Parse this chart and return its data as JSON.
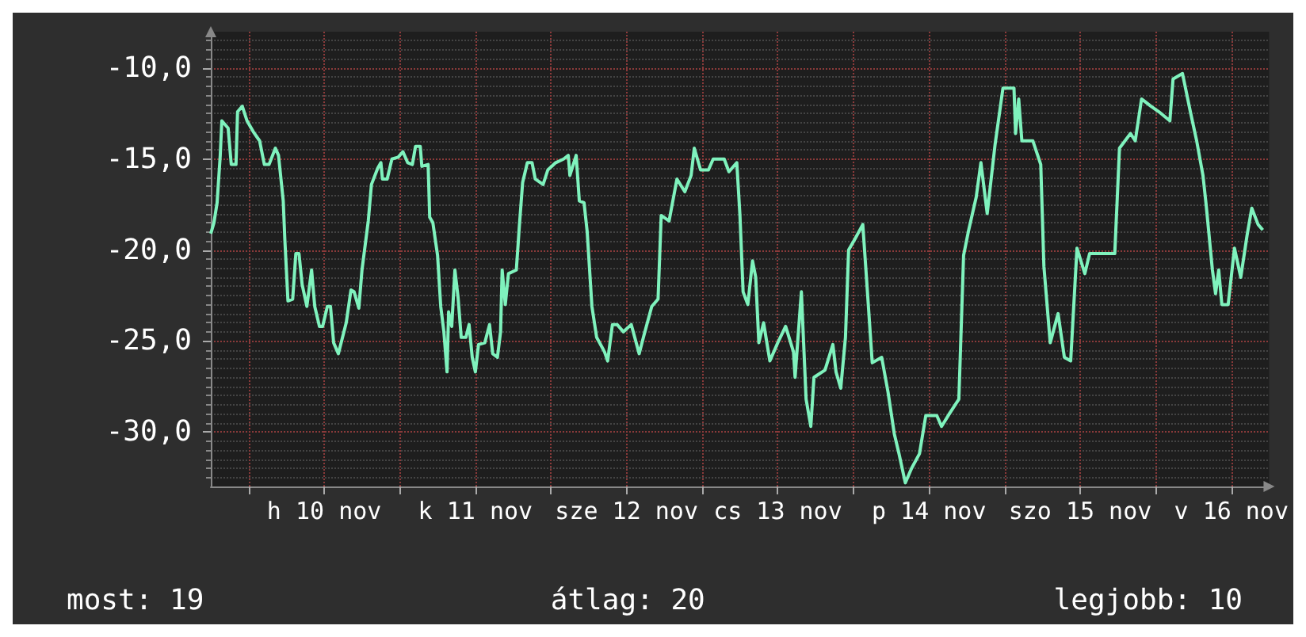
{
  "chart_data": {
    "type": "line",
    "xlim": [
      "--11-09T18:00",
      "--11-16T18:00"
    ],
    "xticks": [
      {
        "value": "--11-10T00:00",
        "label": null
      },
      {
        "value": "--11-10T12:00",
        "label": "h 10 nov"
      },
      {
        "value": "--11-11T00:00",
        "label": null
      },
      {
        "value": "--11-11T12:00",
        "label": "k 11 nov"
      },
      {
        "value": "--11-12T00:00",
        "label": null
      },
      {
        "value": "--11-12T12:00",
        "label": "sze 12 nov"
      },
      {
        "value": "--11-13T00:00",
        "label": null
      },
      {
        "value": "--11-13T12:00",
        "label": "cs 13 nov"
      },
      {
        "value": "--11-14T00:00",
        "label": null
      },
      {
        "value": "--11-14T12:00",
        "label": "p 14 nov"
      },
      {
        "value": "--11-15T00:00",
        "label": null
      },
      {
        "value": "--11-15T12:00",
        "label": "szo 15 nov"
      },
      {
        "value": "--11-16T00:00",
        "label": null
      },
      {
        "value": "--11-16T12:00",
        "label": "v 16 nov"
      }
    ],
    "ylim": [
      -33,
      -8
    ],
    "yticks": [
      {
        "value": -30,
        "label": "-30,0"
      },
      {
        "value": -25,
        "label": "-25,0"
      },
      {
        "value": -20,
        "label": "-20,0"
      },
      {
        "value": -15,
        "label": "-15,0"
      },
      {
        "value": -10,
        "label": "-10,0"
      }
    ],
    "grid": true,
    "marker": "none",
    "annotations": [
      "most: 19",
      "átlag: 20",
      "legjobb: 10"
    ],
    "series": [
      {
        "color": "#7ff2bd",
        "x": [
          "--11-09T18:00",
          "--11-09T18:30",
          "--11-09T19:00",
          "--11-09T19:30",
          "--11-09T19:45",
          "--11-09T20:45",
          "--11-09T21:15",
          "--11-09T22:00",
          "--11-09T22:15",
          "--11-09T23:00",
          "--11-09T23:45",
          "--11-10T00:45",
          "--11-10T01:45",
          "--11-10T02:30",
          "--11-10T03:15",
          "--11-10T04:15",
          "--11-10T04:45",
          "--11-10T05:30",
          "--11-10T05:45",
          "--11-10T06:15",
          "--11-10T07:00",
          "--11-10T07:30",
          "--11-10T08:00",
          "--11-10T08:30",
          "--11-10T09:15",
          "--11-10T10:00",
          "--11-10T10:30",
          "--11-10T11:15",
          "--11-10T11:45",
          "--11-10T12:30",
          "--11-10T13:00",
          "--11-10T13:30",
          "--11-10T14:15",
          "--11-10T15:30",
          "--11-10T16:15",
          "--11-10T16:45",
          "--11-10T17:30",
          "--11-10T18:00",
          "--11-10T19:00",
          "--11-10T19:30",
          "--11-10T20:30",
          "--11-10T21:00",
          "--11-10T21:15",
          "--11-10T22:00",
          "--11-10T22:45",
          "--11-10T23:45",
          "--11-11T00:30",
          "--11-11T01:15",
          "--11-11T02:00",
          "--11-11T02:30",
          "--11-11T03:15",
          "--11-11T03:30",
          "--11-11T04:30",
          "--11-11T04:45",
          "--11-11T05:15",
          "--11-11T06:00",
          "--11-11T06:30",
          "--11-11T07:00",
          "--11-11T07:30",
          "--11-11T07:45",
          "--11-11T08:15",
          "--11-11T08:45",
          "--11-11T09:15",
          "--11-11T09:45",
          "--11-11T10:30",
          "--11-11T11:00",
          "--11-11T11:30",
          "--11-11T12:00",
          "--11-11T12:30",
          "--11-11T13:30",
          "--11-11T14:15",
          "--11-11T14:45",
          "--11-11T15:30",
          "--11-11T16:00",
          "--11-11T16:15",
          "--11-11T16:45",
          "--11-11T17:15",
          "--11-11T18:30",
          "--11-11T19:00",
          "--11-11T19:30",
          "--11-11T20:15",
          "--11-11T21:00",
          "--11-11T21:30",
          "--11-11T22:45",
          "--11-11T23:30",
          "--11-12T00:45",
          "--11-12T02:00",
          "--11-12T02:45",
          "--11-12T03:00",
          "--11-12T04:00",
          "--11-12T04:30",
          "--11-12T05:15",
          "--11-12T05:45",
          "--11-12T06:30",
          "--11-12T07:15",
          "--11-12T08:30",
          "--11-12T09:00",
          "--11-12T09:45",
          "--11-12T10:30",
          "--11-12T11:30",
          "--11-12T12:45",
          "--11-12T14:00",
          "--11-12T14:45",
          "--11-12T16:00",
          "--11-12T17:00",
          "--11-12T17:30",
          "--11-12T18:45",
          "--11-12T20:00",
          "--11-12T21:15",
          "--11-12T22:15",
          "--11-12T22:45",
          "--11-12T23:45",
          "--11-13T01:00",
          "--11-13T01:45",
          "--11-13T03:30",
          "--11-13T04:15",
          "--11-13T05:30",
          "--11-13T06:00",
          "--11-13T06:30",
          "--11-13T07:15",
          "--11-13T08:00",
          "--11-13T08:30",
          "--11-13T09:00",
          "--11-13T09:45",
          "--11-13T10:45",
          "--11-13T12:00",
          "--11-13T13:15",
          "--11-13T14:30",
          "--11-13T14:45",
          "--11-13T15:45",
          "--11-13T16:30",
          "--11-13T17:15",
          "--11-13T17:45",
          "--11-13T19:30",
          "--11-13T20:45",
          "--11-13T21:15",
          "--11-13T22:00",
          "--11-13T22:45",
          "--11-13T23:15",
          "--11-14T00:15",
          "--11-14T01:30",
          "--11-14T02:00",
          "--11-14T03:00",
          "--11-14T04:30",
          "--11-14T05:30",
          "--11-14T06:30",
          "--11-14T07:15",
          "--11-14T08:15",
          "--11-14T09:15",
          "--11-14T10:30",
          "--11-14T11:30",
          "--11-14T13:15",
          "--11-14T14:00",
          "--11-14T15:15",
          "--11-14T16:45",
          "--11-14T17:30",
          "--11-14T18:15",
          "--11-14T19:30",
          "--11-14T20:15",
          "--11-14T21:15",
          "--11-14T22:30",
          "--11-14T23:45",
          "--11-15T01:30",
          "--11-15T01:45",
          "--11-15T02:15",
          "--11-15T02:45",
          "--11-15T04:30",
          "--11-15T05:45",
          "--11-15T06:15",
          "--11-15T07:15",
          "--11-15T08:30",
          "--11-15T09:30",
          "--11-15T10:30",
          "--11-15T11:30",
          "--11-15T12:45",
          "--11-15T13:30",
          "--11-15T16:15",
          "--11-15T17:30",
          "--11-15T18:15",
          "--11-15T20:00",
          "--11-15T20:45",
          "--11-15T21:45",
          "--11-15T23:15",
          "--11-16T00:30",
          "--11-16T02:15",
          "--11-16T02:45",
          "--11-16T04:15",
          "--11-16T05:30",
          "--11-16T06:30",
          "--11-16T07:30",
          "--11-16T08:00",
          "--11-16T09:00",
          "--11-16T09:30",
          "--11-16T10:00",
          "--11-16T10:30",
          "--11-16T11:30",
          "--11-16T12:30",
          "--11-16T13:30",
          "--11-16T14:30",
          "--11-16T15:15",
          "--11-16T16:15",
          "--11-16T17:00"
        ],
        "values": [
          -19.1,
          -18.5,
          -17.4,
          -14.8,
          -12.9,
          -13.3,
          -15.3,
          -15.3,
          -12.4,
          -12.1,
          -12.9,
          -13.5,
          -14.0,
          -15.3,
          -15.3,
          -14.4,
          -14.8,
          -17.3,
          -19.4,
          -22.8,
          -22.7,
          -20.2,
          -20.2,
          -21.9,
          -23.1,
          -21.1,
          -23.1,
          -24.2,
          -24.2,
          -23.1,
          -23.1,
          -25.1,
          -25.7,
          -24.0,
          -22.2,
          -22.3,
          -23.2,
          -21.1,
          -18.4,
          -16.4,
          -15.5,
          -15.2,
          -16.1,
          -16.1,
          -15.0,
          -14.9,
          -14.6,
          -15.2,
          -15.3,
          -14.3,
          -14.3,
          -15.4,
          -15.3,
          -18.2,
          -18.5,
          -20.3,
          -23.1,
          -24.5,
          -26.7,
          -23.4,
          -24.2,
          -21.1,
          -22.6,
          -24.8,
          -24.8,
          -24.1,
          -25.9,
          -26.7,
          -25.2,
          -25.1,
          -24.1,
          -25.7,
          -25.9,
          -24.5,
          -21.1,
          -23.0,
          -21.3,
          -21.1,
          -18.6,
          -16.3,
          -15.2,
          -15.2,
          -16.1,
          -16.4,
          -15.6,
          -15.2,
          -15.0,
          -14.8,
          -15.9,
          -14.8,
          -17.3,
          -17.4,
          -19.0,
          -23.1,
          -24.8,
          -25.6,
          -26.1,
          -24.1,
          -24.1,
          -24.5,
          -24.1,
          -25.7,
          -24.7,
          -23.1,
          -22.7,
          -18.1,
          -18.4,
          -16.1,
          -16.8,
          -15.9,
          -14.4,
          -15.6,
          -15.6,
          -15.0,
          -15.0,
          -15.7,
          -15.2,
          -18.1,
          -22.3,
          -23.0,
          -20.6,
          -21.5,
          -25.1,
          -24.0,
          -26.1,
          -25.1,
          -24.2,
          -25.6,
          -27.0,
          -22.3,
          -28.2,
          -29.7,
          -27.0,
          -26.6,
          -25.2,
          -26.7,
          -27.6,
          -24.8,
          -20.0,
          -19.4,
          -18.6,
          -21.1,
          -26.2,
          -25.9,
          -27.8,
          -30.1,
          -31.2,
          -32.8,
          -32.0,
          -31.2,
          -29.1,
          -29.1,
          -29.7,
          -29.0,
          -28.2,
          -20.3,
          -19.0,
          -17.1,
          -15.2,
          -18.0,
          -14.2,
          -11.1,
          -11.1,
          -13.6,
          -11.7,
          -14.0,
          -14.0,
          -15.3,
          -20.9,
          -25.1,
          -23.5,
          -25.9,
          -26.1,
          -19.9,
          -21.3,
          -20.2,
          -20.2,
          -20.2,
          -14.4,
          -13.6,
          -14.0,
          -11.7,
          -12.1,
          -12.4,
          -12.9,
          -10.6,
          -10.3,
          -12.4,
          -14.0,
          -15.9,
          -17.5,
          -21.1,
          -22.4,
          -21.1,
          -23.0,
          -23.0,
          -19.9,
          -21.5,
          -19.2,
          -17.7,
          -18.6,
          -18.9
        ]
      }
    ]
  }
}
